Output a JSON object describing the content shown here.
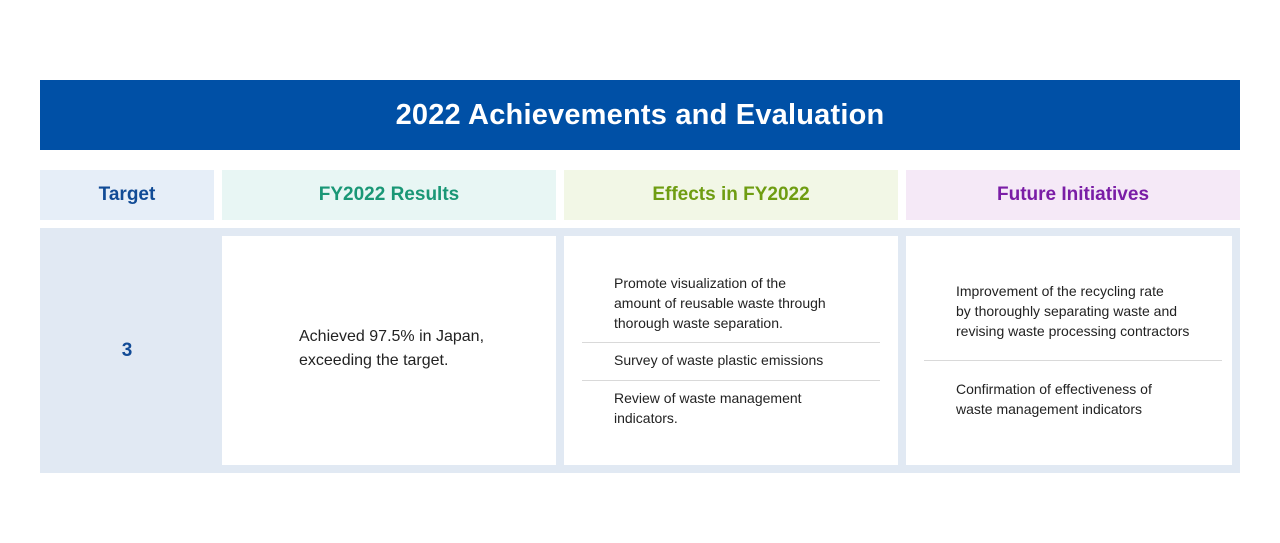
{
  "title": "2022 Achievements and Evaluation",
  "headers": {
    "target": "Target",
    "results": "FY2022 Results",
    "effects": "Effects in FY2022",
    "future": "Future Initiatives"
  },
  "row": {
    "target": "3",
    "results_lines": [
      "Achieved 97.5% in Japan,",
      "exceeding the target."
    ],
    "effects": [
      {
        "lines": [
          "Promote visualization of the",
          "amount of reusable waste through",
          "thorough waste separation."
        ]
      },
      {
        "lines": [
          "Survey of waste plastic emissions"
        ]
      },
      {
        "lines": [
          "Review of waste management",
          "indicators."
        ]
      }
    ],
    "future": [
      {
        "lines": [
          "Improvement of the recycling rate",
          "by thoroughly separating waste and",
          "revising waste processing contractors"
        ]
      },
      {
        "lines": [
          "Confirmation of effectiveness of",
          "waste management indicators"
        ]
      }
    ]
  },
  "colors": {
    "banner": "#0050a6",
    "target": "#114b96",
    "results": "#1a9776",
    "effects": "#6f9d12",
    "future": "#7a1da6"
  }
}
